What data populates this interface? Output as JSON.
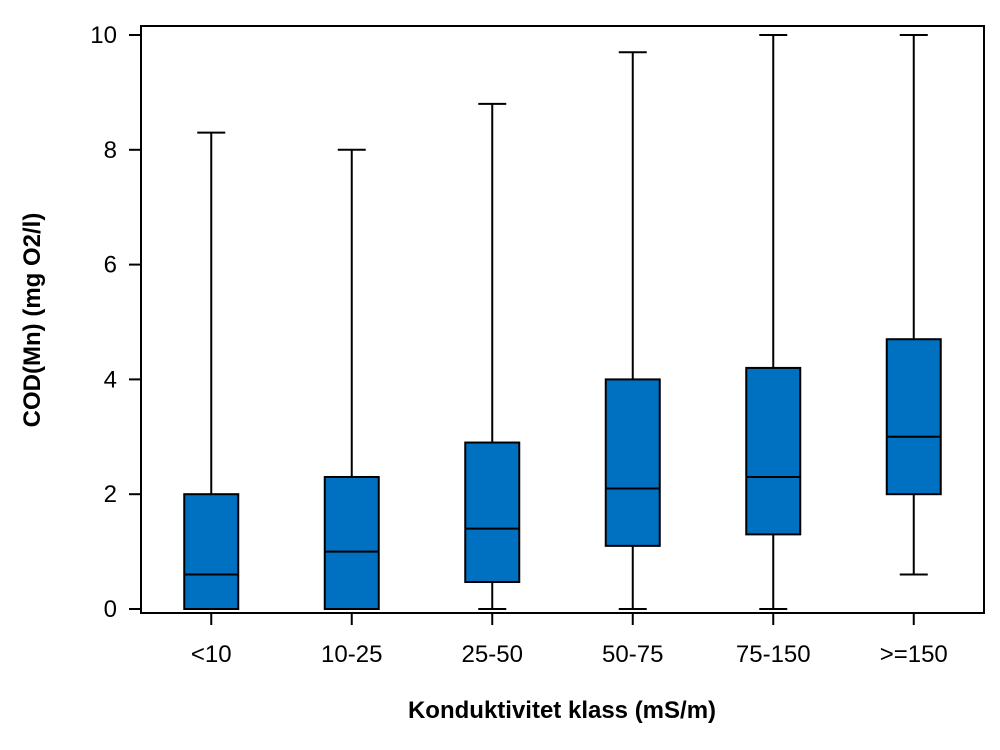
{
  "chart_data": {
    "type": "boxplot",
    "title": "",
    "xlabel": "Konduktivitet klass (mS/m)",
    "ylabel": "COD(Mn) (mg O2/l)",
    "ylim": [
      0,
      10
    ],
    "yticks": [
      0,
      2,
      4,
      6,
      8,
      10
    ],
    "ytick_labels": [
      "0",
      "2",
      "4",
      "6",
      "8",
      "10"
    ],
    "grid": false,
    "box_color": "#0070c0",
    "line_color": "#000000",
    "categories": [
      "<10",
      "10-25",
      "25-50",
      "50-75",
      "75-150",
      ">=150"
    ],
    "boxes": [
      {
        "category": "<10",
        "min": 0,
        "q1": 0,
        "median": 0.6,
        "q3": 2.0,
        "max": 8.3
      },
      {
        "category": "10-25",
        "min": 0,
        "q1": 0,
        "median": 1.0,
        "q3": 2.3,
        "max": 8.0
      },
      {
        "category": "25-50",
        "min": 0,
        "q1": 0.47,
        "median": 1.4,
        "q3": 2.9,
        "max": 8.8
      },
      {
        "category": "50-75",
        "min": 0,
        "q1": 1.1,
        "median": 2.1,
        "q3": 4.0,
        "max": 9.7
      },
      {
        "category": "75-150",
        "min": 0,
        "q1": 1.3,
        "median": 2.3,
        "q3": 4.2,
        "max": 10.0
      },
      {
        "category": ">=150",
        "min": 0.6,
        "q1": 2.0,
        "median": 3.0,
        "q3": 4.7,
        "max": 10.0
      }
    ]
  }
}
